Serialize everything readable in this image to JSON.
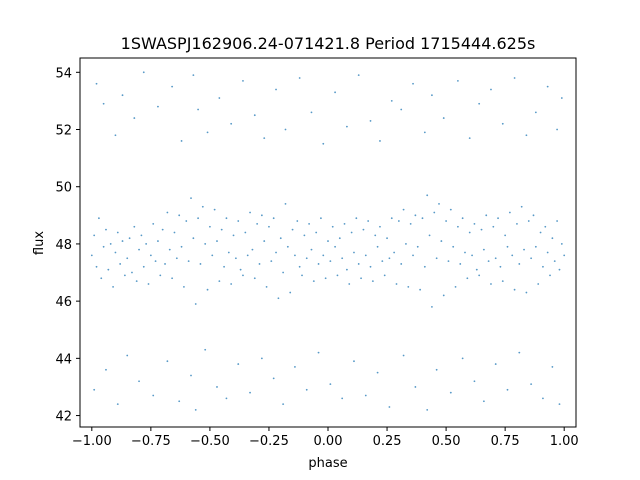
{
  "chart_data": {
    "type": "scatter",
    "title": "1SWASPJ162906.24-071421.8 Period 1715444.625s",
    "xlabel": "phase",
    "ylabel": "flux",
    "xlim": [
      -1.05,
      1.05
    ],
    "ylim": [
      41.6,
      54.5
    ],
    "xticks": [
      -1.0,
      -0.75,
      -0.5,
      -0.25,
      0.0,
      0.25,
      0.5,
      0.75,
      1.0
    ],
    "xtick_labels": [
      "−1.00",
      "−0.75",
      "−0.50",
      "−0.25",
      "0.00",
      "0.25",
      "0.50",
      "0.75",
      "1.00"
    ],
    "yticks": [
      42,
      44,
      46,
      48,
      50,
      52,
      54
    ],
    "ytick_labels": [
      "42",
      "44",
      "46",
      "48",
      "50",
      "52",
      "54"
    ],
    "grid": false,
    "color": "#1f77b4",
    "series": [
      {
        "name": "",
        "points": [
          [
            -1.0,
            47.6
          ],
          [
            -0.99,
            48.3
          ],
          [
            -0.98,
            47.2
          ],
          [
            -0.97,
            48.9
          ],
          [
            -0.96,
            46.8
          ],
          [
            -0.95,
            47.9
          ],
          [
            -0.94,
            48.5
          ],
          [
            -0.93,
            47.1
          ],
          [
            -0.92,
            48.0
          ],
          [
            -0.91,
            46.5
          ],
          [
            -0.9,
            47.7
          ],
          [
            -0.89,
            48.4
          ],
          [
            -0.88,
            47.3
          ],
          [
            -0.87,
            48.1
          ],
          [
            -0.86,
            46.9
          ],
          [
            -0.85,
            47.5
          ],
          [
            -0.84,
            48.2
          ],
          [
            -0.83,
            47.0
          ],
          [
            -0.82,
            48.6
          ],
          [
            -0.81,
            46.7
          ],
          [
            -0.8,
            47.8
          ],
          [
            -0.79,
            48.3
          ],
          [
            -0.78,
            47.2
          ],
          [
            -0.77,
            48.0
          ],
          [
            -0.76,
            46.6
          ],
          [
            -0.75,
            47.6
          ],
          [
            -0.74,
            48.7
          ],
          [
            -0.73,
            47.4
          ],
          [
            -0.72,
            48.1
          ],
          [
            -0.71,
            46.9
          ],
          [
            -0.7,
            48.5
          ],
          [
            -0.69,
            47.3
          ],
          [
            -0.68,
            49.1
          ],
          [
            -0.67,
            47.8
          ],
          [
            -0.66,
            46.8
          ],
          [
            -0.65,
            48.4
          ],
          [
            -0.64,
            47.5
          ],
          [
            -0.63,
            49.0
          ],
          [
            -0.62,
            47.9
          ],
          [
            -0.61,
            46.5
          ],
          [
            -0.6,
            48.8
          ],
          [
            -0.59,
            47.4
          ],
          [
            -0.58,
            49.6
          ],
          [
            -0.57,
            48.2
          ],
          [
            -0.56,
            45.9
          ],
          [
            -0.55,
            48.9
          ],
          [
            -0.54,
            47.3
          ],
          [
            -0.53,
            49.3
          ],
          [
            -0.52,
            48.0
          ],
          [
            -0.51,
            46.4
          ],
          [
            -0.5,
            48.6
          ],
          [
            -0.49,
            47.6
          ],
          [
            -0.48,
            49.2
          ],
          [
            -0.47,
            48.1
          ],
          [
            -0.46,
            46.7
          ],
          [
            -0.45,
            48.5
          ],
          [
            -0.44,
            47.2
          ],
          [
            -0.43,
            48.9
          ],
          [
            -0.42,
            47.7
          ],
          [
            -0.41,
            46.6
          ],
          [
            -0.4,
            48.3
          ],
          [
            -0.39,
            47.5
          ],
          [
            -0.38,
            48.8
          ],
          [
            -0.37,
            47.1
          ],
          [
            -0.36,
            46.9
          ],
          [
            -0.35,
            48.4
          ],
          [
            -0.34,
            47.6
          ],
          [
            -0.33,
            49.1
          ],
          [
            -0.32,
            47.8
          ],
          [
            -0.31,
            46.8
          ],
          [
            -0.3,
            48.7
          ],
          [
            -0.29,
            47.3
          ],
          [
            -0.28,
            49.0
          ],
          [
            -0.27,
            48.1
          ],
          [
            -0.26,
            46.5
          ],
          [
            -0.25,
            48.6
          ],
          [
            -0.24,
            47.4
          ],
          [
            -0.23,
            48.9
          ],
          [
            -0.22,
            47.7
          ],
          [
            -0.21,
            46.1
          ],
          [
            -0.2,
            48.2
          ],
          [
            -0.19,
            47.0
          ],
          [
            -0.18,
            49.4
          ],
          [
            -0.17,
            47.9
          ],
          [
            -0.16,
            46.3
          ],
          [
            -0.15,
            48.5
          ],
          [
            -0.14,
            47.6
          ],
          [
            -0.13,
            48.8
          ],
          [
            -0.12,
            47.2
          ],
          [
            -0.11,
            46.9
          ],
          [
            -0.1,
            48.3
          ],
          [
            -0.09,
            47.5
          ],
          [
            -0.08,
            48.7
          ],
          [
            -0.07,
            47.8
          ],
          [
            -0.06,
            46.7
          ],
          [
            -0.05,
            48.4
          ],
          [
            -0.04,
            47.3
          ],
          [
            -0.03,
            48.9
          ],
          [
            -0.02,
            47.6
          ],
          [
            -0.01,
            46.8
          ],
          [
            0.0,
            48.1
          ],
          [
            0.01,
            47.4
          ],
          [
            0.02,
            48.6
          ],
          [
            0.03,
            47.9
          ],
          [
            0.04,
            46.9
          ],
          [
            0.05,
            48.2
          ],
          [
            0.06,
            47.5
          ],
          [
            0.07,
            48.7
          ],
          [
            0.08,
            47.1
          ],
          [
            0.09,
            46.6
          ],
          [
            0.1,
            48.4
          ],
          [
            0.11,
            47.7
          ],
          [
            0.12,
            48.9
          ],
          [
            0.13,
            47.3
          ],
          [
            0.14,
            46.8
          ],
          [
            0.15,
            48.5
          ],
          [
            0.16,
            47.6
          ],
          [
            0.17,
            48.8
          ],
          [
            0.18,
            47.2
          ],
          [
            0.19,
            46.7
          ],
          [
            0.2,
            48.3
          ],
          [
            0.21,
            47.9
          ],
          [
            0.22,
            48.6
          ],
          [
            0.23,
            47.4
          ],
          [
            0.24,
            46.9
          ],
          [
            0.25,
            48.2
          ],
          [
            0.26,
            47.5
          ],
          [
            0.27,
            48.9
          ],
          [
            0.28,
            47.7
          ],
          [
            0.29,
            46.6
          ],
          [
            0.3,
            48.8
          ],
          [
            0.31,
            47.3
          ],
          [
            0.32,
            49.2
          ],
          [
            0.33,
            48.0
          ],
          [
            0.34,
            46.5
          ],
          [
            0.35,
            48.7
          ],
          [
            0.36,
            47.6
          ],
          [
            0.37,
            49.0
          ],
          [
            0.38,
            47.9
          ],
          [
            0.39,
            46.4
          ],
          [
            0.4,
            48.9
          ],
          [
            0.41,
            47.2
          ],
          [
            0.42,
            49.7
          ],
          [
            0.43,
            48.3
          ],
          [
            0.44,
            45.8
          ],
          [
            0.45,
            49.1
          ],
          [
            0.46,
            47.5
          ],
          [
            0.47,
            49.4
          ],
          [
            0.48,
            48.1
          ],
          [
            0.49,
            46.2
          ],
          [
            0.5,
            48.8
          ],
          [
            0.51,
            47.4
          ],
          [
            0.52,
            49.2
          ],
          [
            0.53,
            47.9
          ],
          [
            0.54,
            46.5
          ],
          [
            0.55,
            48.6
          ],
          [
            0.56,
            47.3
          ],
          [
            0.57,
            48.9
          ],
          [
            0.58,
            47.7
          ],
          [
            0.59,
            46.8
          ],
          [
            0.6,
            48.4
          ],
          [
            0.61,
            47.6
          ],
          [
            0.62,
            48.7
          ],
          [
            0.63,
            47.1
          ],
          [
            0.64,
            46.9
          ],
          [
            0.65,
            48.5
          ],
          [
            0.66,
            47.8
          ],
          [
            0.67,
            49.0
          ],
          [
            0.68,
            47.4
          ],
          [
            0.69,
            46.6
          ],
          [
            0.7,
            48.6
          ],
          [
            0.71,
            47.5
          ],
          [
            0.72,
            48.9
          ],
          [
            0.73,
            47.2
          ],
          [
            0.74,
            46.7
          ],
          [
            0.75,
            48.3
          ],
          [
            0.76,
            47.9
          ],
          [
            0.77,
            49.1
          ],
          [
            0.78,
            47.6
          ],
          [
            0.79,
            46.4
          ],
          [
            0.8,
            48.7
          ],
          [
            0.81,
            47.3
          ],
          [
            0.82,
            49.3
          ],
          [
            0.83,
            47.8
          ],
          [
            0.84,
            46.3
          ],
          [
            0.85,
            48.8
          ],
          [
            0.86,
            47.5
          ],
          [
            0.87,
            49.0
          ],
          [
            0.88,
            47.9
          ],
          [
            0.89,
            46.6
          ],
          [
            0.9,
            48.4
          ],
          [
            0.91,
            47.2
          ],
          [
            0.92,
            48.6
          ],
          [
            0.93,
            47.7
          ],
          [
            0.94,
            46.9
          ],
          [
            0.95,
            48.2
          ],
          [
            0.96,
            47.4
          ],
          [
            0.97,
            48.8
          ],
          [
            0.98,
            47.1
          ],
          [
            0.99,
            48.0
          ],
          [
            1.0,
            47.6
          ],
          [
            -0.98,
            53.6
          ],
          [
            -0.95,
            52.9
          ],
          [
            -0.9,
            51.8
          ],
          [
            -0.87,
            53.2
          ],
          [
            -0.82,
            52.4
          ],
          [
            -0.78,
            54.0
          ],
          [
            -0.72,
            52.8
          ],
          [
            -0.66,
            53.5
          ],
          [
            -0.62,
            51.6
          ],
          [
            -0.57,
            53.9
          ],
          [
            -0.55,
            52.7
          ],
          [
            -0.51,
            51.9
          ],
          [
            -0.46,
            53.1
          ],
          [
            -0.41,
            52.2
          ],
          [
            -0.36,
            53.7
          ],
          [
            -0.31,
            52.5
          ],
          [
            -0.27,
            51.7
          ],
          [
            -0.22,
            53.4
          ],
          [
            -0.18,
            52.0
          ],
          [
            -0.12,
            53.8
          ],
          [
            -0.07,
            52.6
          ],
          [
            -0.02,
            51.5
          ],
          [
            0.03,
            53.3
          ],
          [
            0.08,
            52.1
          ],
          [
            0.13,
            53.9
          ],
          [
            0.18,
            52.3
          ],
          [
            0.22,
            51.6
          ],
          [
            0.27,
            53.0
          ],
          [
            0.31,
            52.7
          ],
          [
            0.36,
            53.6
          ],
          [
            0.41,
            51.9
          ],
          [
            0.44,
            53.2
          ],
          [
            0.49,
            52.4
          ],
          [
            0.55,
            53.7
          ],
          [
            0.6,
            51.7
          ],
          [
            0.64,
            52.9
          ],
          [
            0.69,
            53.4
          ],
          [
            0.74,
            52.2
          ],
          [
            0.79,
            53.8
          ],
          [
            0.84,
            51.8
          ],
          [
            0.88,
            52.6
          ],
          [
            0.93,
            53.5
          ],
          [
            0.97,
            52.0
          ],
          [
            0.99,
            53.1
          ],
          [
            -0.99,
            42.9
          ],
          [
            -0.94,
            43.6
          ],
          [
            -0.89,
            42.4
          ],
          [
            -0.85,
            44.1
          ],
          [
            -0.8,
            43.2
          ],
          [
            -0.74,
            42.7
          ],
          [
            -0.68,
            43.9
          ],
          [
            -0.63,
            42.5
          ],
          [
            -0.58,
            43.4
          ],
          [
            -0.56,
            42.2
          ],
          [
            -0.52,
            44.3
          ],
          [
            -0.47,
            43.0
          ],
          [
            -0.43,
            42.6
          ],
          [
            -0.38,
            43.8
          ],
          [
            -0.33,
            42.8
          ],
          [
            -0.28,
            44.0
          ],
          [
            -0.23,
            43.3
          ],
          [
            -0.19,
            42.4
          ],
          [
            -0.14,
            43.7
          ],
          [
            -0.09,
            42.9
          ],
          [
            -0.04,
            44.2
          ],
          [
            0.01,
            43.1
          ],
          [
            0.06,
            42.6
          ],
          [
            0.11,
            43.9
          ],
          [
            0.16,
            42.7
          ],
          [
            0.21,
            43.5
          ],
          [
            0.26,
            42.3
          ],
          [
            0.32,
            44.1
          ],
          [
            0.37,
            43.0
          ],
          [
            0.42,
            42.2
          ],
          [
            0.46,
            43.6
          ],
          [
            0.52,
            42.8
          ],
          [
            0.57,
            44.0
          ],
          [
            0.62,
            43.2
          ],
          [
            0.66,
            42.5
          ],
          [
            0.71,
            43.8
          ],
          [
            0.76,
            42.9
          ],
          [
            0.81,
            44.2
          ],
          [
            0.86,
            43.1
          ],
          [
            0.91,
            42.6
          ],
          [
            0.95,
            43.7
          ],
          [
            0.98,
            42.4
          ]
        ]
      }
    ]
  }
}
